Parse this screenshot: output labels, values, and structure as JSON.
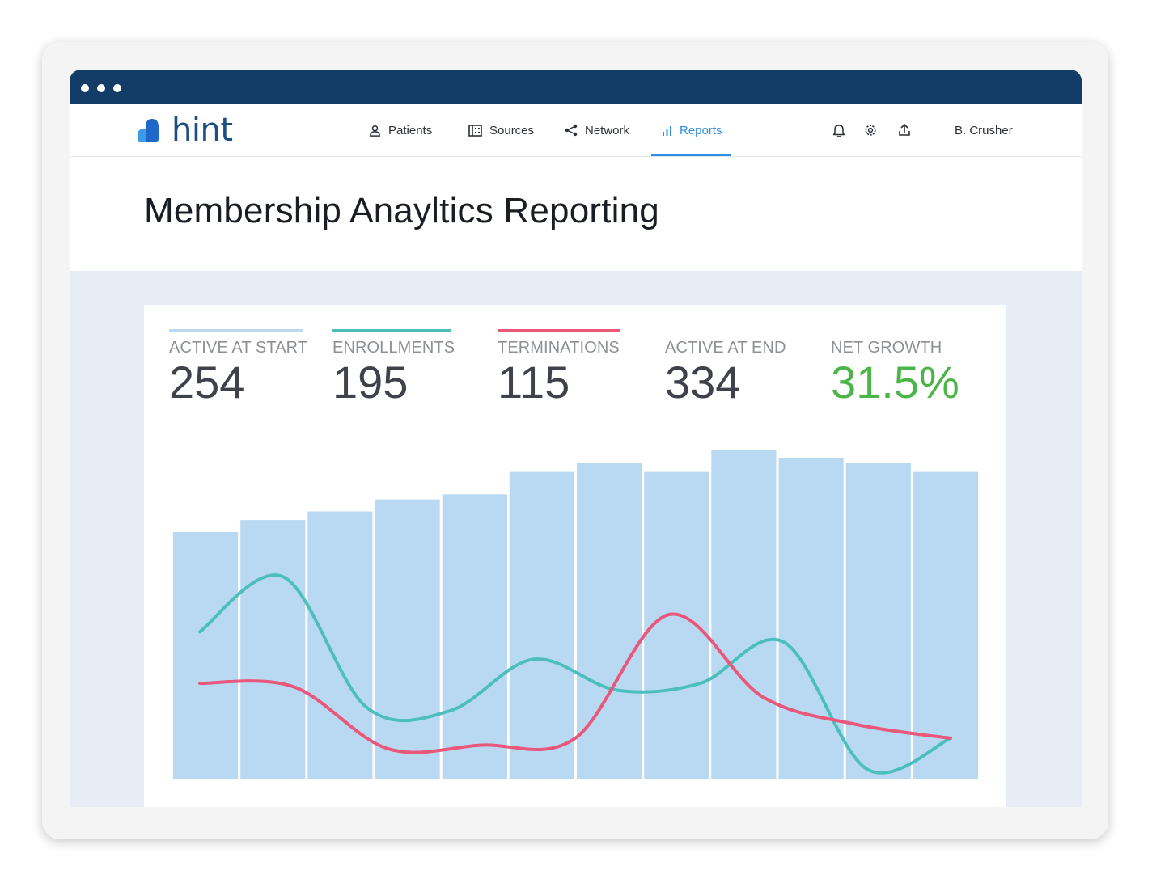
{
  "app": {
    "brand": "hint",
    "colors": {
      "titlebar": "#133d67",
      "accent": "#2d8fe6",
      "logo_dark": "#1c4e80",
      "logo_light": "#3d9ae8"
    }
  },
  "nav": {
    "items": [
      {
        "label": "Patients",
        "icon": "person-icon"
      },
      {
        "label": "Sources",
        "icon": "building-icon"
      },
      {
        "label": "Network",
        "icon": "share-icon"
      },
      {
        "label": "Reports",
        "icon": "bar-chart-icon",
        "active": true
      }
    ],
    "icons": [
      "bell-icon",
      "gear-icon",
      "upload-icon"
    ],
    "user": "B. Crusher"
  },
  "page": {
    "title": "Membership Anayltics Reporting"
  },
  "stats": [
    {
      "label": "ACTIVE AT START",
      "value": "254",
      "color": "#bcd9f1"
    },
    {
      "label": "ENROLLMENTS",
      "value": "195",
      "color": "#4cbfbd"
    },
    {
      "label": "TERMINATIONS",
      "value": "115",
      "color": "#e9577b"
    },
    {
      "label": "ACTIVE AT END",
      "value": "334"
    },
    {
      "label": "NET GROWTH",
      "value": "31.5%",
      "color": "#4cb54a"
    }
  ],
  "chart_data": {
    "type": "bar",
    "title": "",
    "xlabel": "",
    "ylabel": "",
    "grid": false,
    "ylim": [
      0,
      100
    ],
    "bar_color": "#b9d9f2",
    "series": [
      {
        "values": [
          72,
          75.5,
          78,
          81.5,
          83,
          89.5,
          92,
          89.5,
          96,
          93.5,
          92,
          89.5
        ],
        "type": "bar"
      },
      {
        "values": [
          43,
          59,
          21,
          20,
          35,
          26,
          28,
          40,
          3,
          12
        ],
        "type": "line",
        "color": "#4cbfbd"
      },
      {
        "values": [
          28,
          27,
          9,
          10,
          12,
          48,
          24,
          16,
          12
        ],
        "type": "line",
        "color": "#e9577b"
      }
    ]
  }
}
